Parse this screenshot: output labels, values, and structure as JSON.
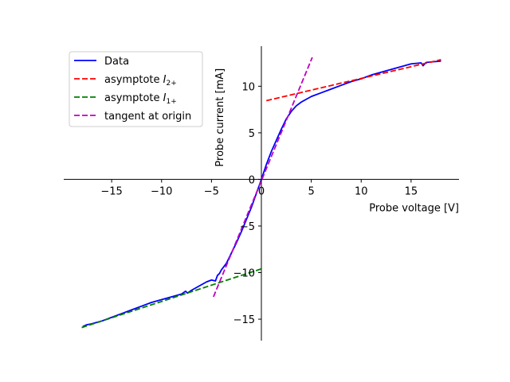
{
  "chart_data": {
    "type": "line",
    "xlabel": "Probe voltage [V]",
    "ylabel": "Probe current [mA]",
    "xlim": [
      -19.8,
      19.8
    ],
    "ylim": [
      -17.3,
      14.3
    ],
    "x_ticks": [
      -15,
      -10,
      -5,
      0,
      5,
      10,
      15
    ],
    "y_ticks": [
      -15,
      -10,
      -5,
      0,
      5,
      10
    ],
    "x_tick_labels": [
      "−15",
      "−10",
      "−5",
      "0",
      "5",
      "10",
      "15"
    ],
    "y_tick_labels": [
      "−15",
      "−10",
      "−5",
      "0",
      "5",
      "10"
    ],
    "grid": false,
    "legend_position": "upper-left",
    "series": [
      {
        "name": "Data",
        "style": "solid",
        "color": "#0000ff",
        "x": [
          -17.9,
          -17.5,
          -17,
          -16,
          -15,
          -14,
          -13,
          -12,
          -11,
          -10,
          -9,
          -8,
          -7.6,
          -7.4,
          -7,
          -6.5,
          -6,
          -5.5,
          -5,
          -4.6,
          -4.4,
          -4.2,
          -4,
          -3.5,
          -3,
          -2.5,
          -2,
          -1.5,
          -1,
          -0.5,
          0,
          0.5,
          1,
          1.5,
          2,
          2.5,
          3,
          3.5,
          4,
          5,
          6,
          7,
          8,
          9,
          10,
          11,
          12,
          13,
          14,
          15,
          15.5,
          16,
          16.2,
          16.5,
          17,
          18
        ],
        "y": [
          -15.8,
          -15.6,
          -15.5,
          -15.2,
          -14.8,
          -14.4,
          -14,
          -13.6,
          -13.2,
          -12.9,
          -12.6,
          -12.3,
          -12.0,
          -12.2,
          -11.9,
          -11.6,
          -11.3,
          -11.0,
          -10.8,
          -10.9,
          -10.3,
          -10.1,
          -9.7,
          -9.0,
          -7.9,
          -6.8,
          -5.6,
          -4.3,
          -3.0,
          -1.5,
          0,
          1.6,
          3.0,
          4.2,
          5.4,
          6.5,
          7.3,
          7.9,
          8.3,
          8.9,
          9.3,
          9.7,
          10.1,
          10.5,
          10.8,
          11.2,
          11.5,
          11.8,
          12.1,
          12.4,
          12.45,
          12.5,
          12.2,
          12.55,
          12.6,
          12.7
        ]
      },
      {
        "name": "asymptote I2+",
        "style": "dashed",
        "color": "#ff0000",
        "x": [
          0.5,
          18
        ],
        "y": [
          8.45,
          12.85
        ]
      },
      {
        "name": "asymptote I1+",
        "style": "dashed",
        "color": "#008000",
        "x": [
          -18,
          0
        ],
        "y": [
          -15.9,
          -9.6
        ]
      },
      {
        "name": "tangent at origin",
        "style": "dashed",
        "color": "#bf00bf",
        "x": [
          -4.8,
          5.1
        ],
        "y": [
          -12.6,
          13.1
        ]
      }
    ],
    "legend": [
      {
        "text": "Data",
        "sub": "",
        "sym": "",
        "color": "#0000ff",
        "style": "solid"
      },
      {
        "text": "asymptote ",
        "sym": "I",
        "sub": "2+",
        "color": "#ff0000",
        "style": "dashed"
      },
      {
        "text": "asymptote ",
        "sym": "I",
        "sub": "1+",
        "color": "#008000",
        "style": "dashed"
      },
      {
        "text": "tangent at origin",
        "sub": "",
        "sym": "",
        "color": "#bf00bf",
        "style": "dashed"
      }
    ]
  }
}
